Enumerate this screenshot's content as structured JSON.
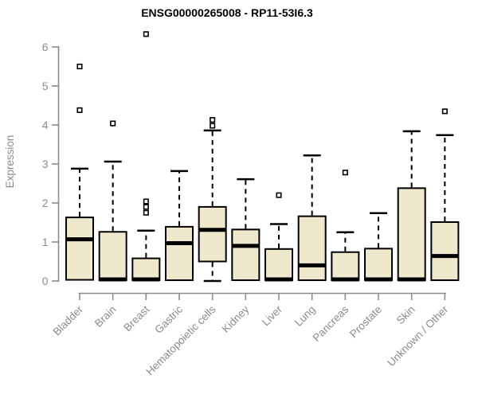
{
  "chart_data": {
    "type": "box",
    "title": "ENSG00000265008 - RP11-53I6.3",
    "xlabel": "",
    "ylabel": "Expression",
    "ylim": [
      0,
      6
    ],
    "yticks": [
      0,
      1,
      2,
      3,
      4,
      5,
      6
    ],
    "grid": false,
    "legend": "none",
    "categories": [
      {
        "label": "Bladder",
        "q1": 0.03,
        "median": 1.07,
        "q3": 1.63,
        "whisker_low": 0.03,
        "whisker_high": 2.88,
        "outliers": [
          4.38,
          5.5
        ]
      },
      {
        "label": "Brain",
        "q1": 0.02,
        "median": 0.04,
        "q3": 1.26,
        "whisker_low": 0.02,
        "whisker_high": 3.06,
        "outliers": [
          4.04
        ]
      },
      {
        "label": "Breast",
        "q1": 0.02,
        "median": 0.04,
        "q3": 0.58,
        "whisker_low": 0.02,
        "whisker_high": 1.29,
        "outliers": [
          1.75,
          1.9,
          2.04,
          6.33
        ]
      },
      {
        "label": "Gastric",
        "q1": 0.02,
        "median": 0.97,
        "q3": 1.39,
        "whisker_low": 0.02,
        "whisker_high": 2.82,
        "outliers": []
      },
      {
        "label": "Hematopoietic cells",
        "q1": 0.5,
        "median": 1.31,
        "q3": 1.9,
        "whisker_low": 0.0,
        "whisker_high": 3.86,
        "outliers": [
          3.98,
          4.13
        ]
      },
      {
        "label": "Kidney",
        "q1": 0.02,
        "median": 0.9,
        "q3": 1.32,
        "whisker_low": 0.02,
        "whisker_high": 2.61,
        "outliers": []
      },
      {
        "label": "Liver",
        "q1": 0.02,
        "median": 0.04,
        "q3": 0.82,
        "whisker_low": 0.02,
        "whisker_high": 1.46,
        "outliers": [
          2.2
        ]
      },
      {
        "label": "Lung",
        "q1": 0.02,
        "median": 0.4,
        "q3": 1.66,
        "whisker_low": 0.02,
        "whisker_high": 3.22,
        "outliers": []
      },
      {
        "label": "Pancreas",
        "q1": 0.02,
        "median": 0.04,
        "q3": 0.74,
        "whisker_low": 0.02,
        "whisker_high": 1.25,
        "outliers": [
          2.78
        ]
      },
      {
        "label": "Prostate",
        "q1": 0.02,
        "median": 0.04,
        "q3": 0.83,
        "whisker_low": 0.02,
        "whisker_high": 1.74,
        "outliers": []
      },
      {
        "label": "Skin",
        "q1": 0.02,
        "median": 0.04,
        "q3": 2.38,
        "whisker_low": 0.02,
        "whisker_high": 3.84,
        "outliers": []
      },
      {
        "label": "Unknown / Other",
        "q1": 0.02,
        "median": 0.64,
        "q3": 1.51,
        "whisker_low": 0.02,
        "whisker_high": 3.74,
        "outliers": [
          4.35
        ]
      }
    ],
    "colors": {
      "box_fill": "#EEE8CD",
      "box_border": "#000000",
      "median": "#000000",
      "whisker": "#000000",
      "axis": "#8a8a8a",
      "tick_label": "#8c8c8c",
      "title": "#000000"
    }
  }
}
